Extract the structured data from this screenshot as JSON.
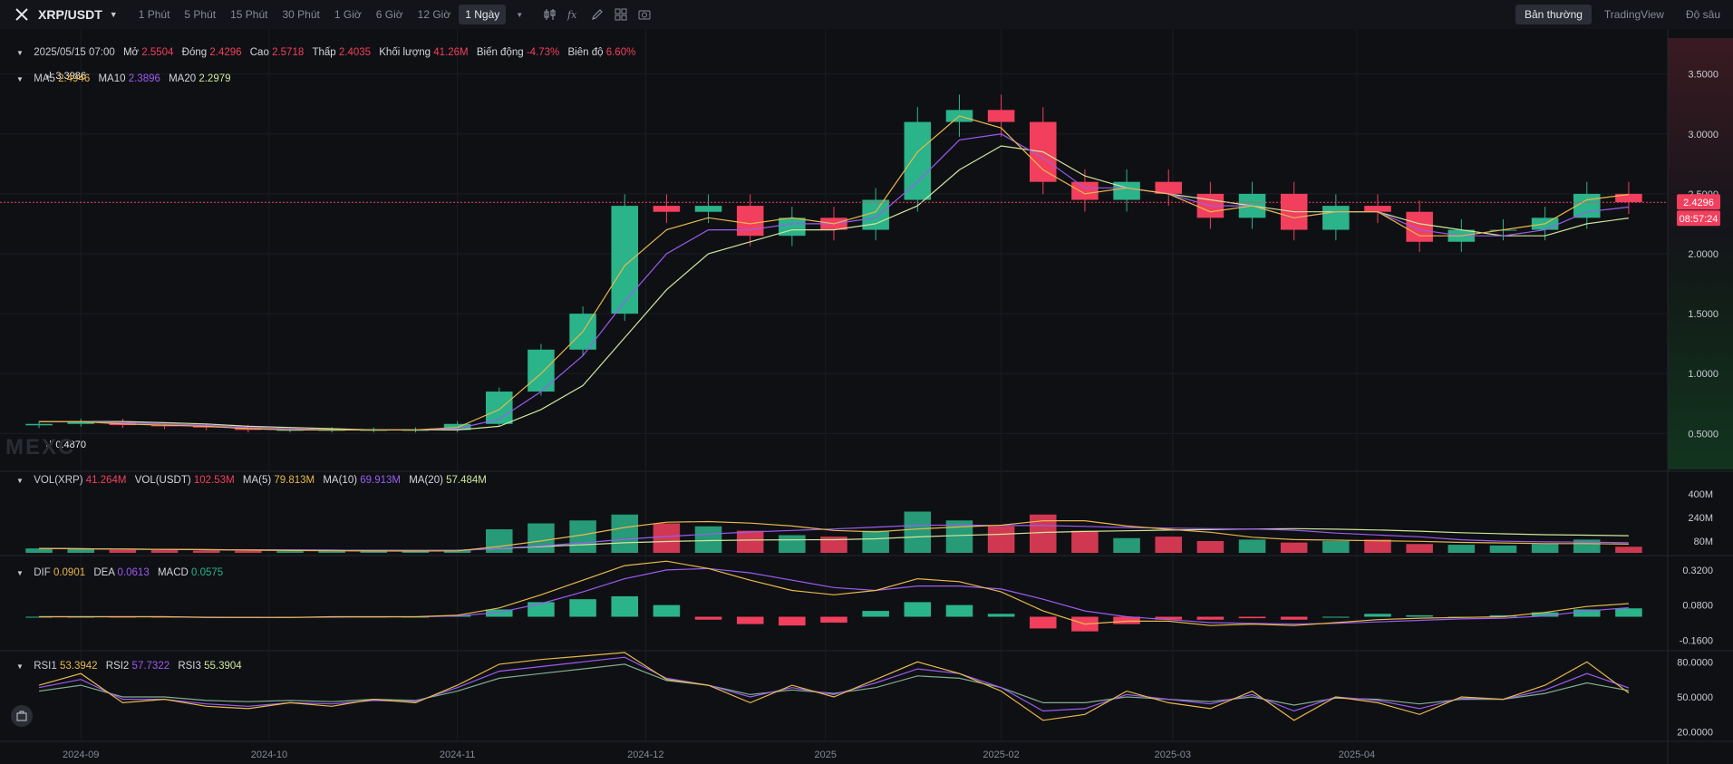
{
  "toolbar": {
    "pair": "XRP/USDT",
    "timeframes": [
      "1 Phút",
      "5 Phút",
      "15 Phút",
      "30 Phút",
      "1 Giờ",
      "6 Giờ",
      "12 Giờ",
      "1 Ngày"
    ],
    "active_timeframe": "1 Ngày",
    "right_buttons": [
      "Bản thường",
      "TradingView",
      "Độ sâu"
    ],
    "active_right": "Bản thường"
  },
  "ohlc_legend": {
    "date": "2025/05/15 07:00",
    "open_label": "Mở",
    "open": "2.5504",
    "close_label": "Đóng",
    "close": "2.4296",
    "high_label": "Cao",
    "high": "2.5718",
    "low_label": "Thấp",
    "low": "2.4035",
    "volume_label": "Khối lượng",
    "volume": "41.26M",
    "change_label": "Biến động",
    "change": "-4.73%",
    "amplitude_label": "Biên độ",
    "amplitude": "6.60%"
  },
  "ma_legend": {
    "ma5_label": "MA5",
    "ma5": "2.4946",
    "ma10_label": "MA10",
    "ma10": "2.3896",
    "ma20_label": "MA20",
    "ma20": "2.2979"
  },
  "vol_legend": {
    "vol_xrp_label": "VOL(XRP)",
    "vol_xrp": "41.264M",
    "vol_usdt_label": "VOL(USDT)",
    "vol_usdt": "102.53M",
    "ma5_label": "MA(5)",
    "ma5": "79.813M",
    "ma10_label": "MA(10)",
    "ma10": "69.913M",
    "ma20_label": "MA(20)",
    "ma20": "57.484M"
  },
  "macd_legend": {
    "dif_label": "DIF",
    "dif": "0.0901",
    "dea_label": "DEA",
    "dea": "0.0613",
    "macd_label": "MACD",
    "macd": "0.0575"
  },
  "rsi_legend": {
    "rsi1_label": "RSI1",
    "rsi1": "53.3942",
    "rsi2_label": "RSI2",
    "rsi2": "57.7322",
    "rsi3_label": "RSI3",
    "rsi3": "55.3904"
  },
  "watermark": "MEXC",
  "current_price_tag": "2.4296",
  "countdown": "08:57:24",
  "icons": {
    "logo": "xrp-logo-icon",
    "candles": "candlestick-icon",
    "indicators": "indicator-fx-icon",
    "draw": "pencil-icon",
    "layout": "grid-layout-icon",
    "snapshot": "camera-icon",
    "caret": "chevron-down-icon",
    "tools": "toolbox-icon"
  },
  "colors": {
    "up": "#2bb38a",
    "down": "#f23f5d",
    "ma5": "#e8b94a",
    "ma10": "#9a5cf2",
    "ma20": "#cfe69a",
    "background": "#0f1014"
  },
  "chart_data": [
    {
      "type": "candlestick",
      "panel": "price",
      "title": "",
      "x_ticks": [
        "2024-09",
        "2024-10",
        "2024-11",
        "2024-12",
        "2025",
        "2025-02",
        "2025-03",
        "2025-04"
      ],
      "y_ticks": [
        "3.5000",
        "3.0000",
        "2.5000",
        "2.0000",
        "1.5000",
        "1.0000",
        "0.5000"
      ],
      "ylim": [
        0.2,
        3.8
      ],
      "annotations": [
        {
          "label": "3.3986",
          "value": 3.3986,
          "date": "2024-12-03"
        },
        {
          "label": "0.4870",
          "value": 0.487,
          "date": "2024-09-26"
        }
      ],
      "last": {
        "open": 2.5504,
        "high": 2.5718,
        "low": 2.4035,
        "close": 2.4296
      },
      "dates": [
        "2024-08-24",
        "2024-08-31",
        "2024-09-07",
        "2024-09-14",
        "2024-09-21",
        "2024-09-28",
        "2024-10-05",
        "2024-10-12",
        "2024-10-19",
        "2024-10-26",
        "2024-11-02",
        "2024-11-09",
        "2024-11-16",
        "2024-11-23",
        "2024-11-30",
        "2024-12-07",
        "2024-12-14",
        "2024-12-21",
        "2024-12-28",
        "2025-01-04",
        "2025-01-11",
        "2025-01-18",
        "2025-01-25",
        "2025-02-01",
        "2025-02-08",
        "2025-02-15",
        "2025-02-22",
        "2025-03-01",
        "2025-03-08",
        "2025-03-15",
        "2025-03-22",
        "2025-03-29",
        "2025-04-05",
        "2025-04-12",
        "2025-04-19",
        "2025-04-26",
        "2025-05-03",
        "2025-05-10",
        "2025-05-15"
      ],
      "close": [
        0.58,
        0.6,
        0.57,
        0.56,
        0.55,
        0.53,
        0.53,
        0.53,
        0.53,
        0.53,
        0.58,
        0.85,
        1.2,
        1.5,
        2.4,
        2.35,
        2.4,
        2.15,
        2.3,
        2.2,
        2.45,
        3.1,
        3.2,
        3.1,
        2.6,
        2.45,
        2.6,
        2.5,
        2.3,
        2.5,
        2.2,
        2.4,
        2.35,
        2.1,
        2.2,
        2.2,
        2.3,
        2.5,
        2.4296
      ],
      "ma5_series": [
        0.6,
        0.6,
        0.58,
        0.57,
        0.56,
        0.54,
        0.53,
        0.53,
        0.53,
        0.53,
        0.55,
        0.7,
        1.0,
        1.35,
        1.9,
        2.2,
        2.3,
        2.25,
        2.3,
        2.25,
        2.35,
        2.85,
        3.15,
        3.05,
        2.7,
        2.5,
        2.55,
        2.5,
        2.35,
        2.4,
        2.3,
        2.35,
        2.35,
        2.15,
        2.15,
        2.2,
        2.25,
        2.45,
        2.4946
      ],
      "ma10_series": [
        0.6,
        0.6,
        0.59,
        0.58,
        0.57,
        0.55,
        0.54,
        0.53,
        0.53,
        0.53,
        0.54,
        0.62,
        0.85,
        1.15,
        1.6,
        2.0,
        2.2,
        2.2,
        2.25,
        2.25,
        2.3,
        2.6,
        2.95,
        3.0,
        2.8,
        2.55,
        2.55,
        2.5,
        2.4,
        2.4,
        2.3,
        2.35,
        2.35,
        2.2,
        2.15,
        2.15,
        2.2,
        2.35,
        2.3896
      ],
      "ma20_series": [
        0.6,
        0.6,
        0.6,
        0.59,
        0.58,
        0.56,
        0.55,
        0.54,
        0.53,
        0.53,
        0.53,
        0.56,
        0.7,
        0.9,
        1.3,
        1.7,
        2.0,
        2.1,
        2.2,
        2.2,
        2.25,
        2.4,
        2.7,
        2.9,
        2.85,
        2.65,
        2.55,
        2.5,
        2.45,
        2.4,
        2.35,
        2.35,
        2.35,
        2.25,
        2.2,
        2.15,
        2.15,
        2.25,
        2.2979
      ]
    },
    {
      "type": "bar",
      "panel": "volume",
      "y_ticks": [
        "400M",
        "240M",
        "80M"
      ],
      "ylim": [
        0,
        480
      ],
      "unit": "M",
      "dates_ref": "same as price panel",
      "values": [
        30,
        25,
        20,
        18,
        15,
        14,
        12,
        12,
        11,
        12,
        20,
        160,
        200,
        220,
        260,
        200,
        180,
        150,
        120,
        110,
        150,
        280,
        220,
        180,
        260,
        150,
        100,
        110,
        80,
        90,
        70,
        80,
        90,
        60,
        55,
        50,
        60,
        90,
        41.26
      ],
      "last_value": 41.26
    },
    {
      "type": "bar",
      "panel": "macd",
      "y_ticks": [
        "0.3200",
        "0.0800",
        "-0.1600"
      ],
      "ylim": [
        -0.22,
        0.4
      ],
      "dates_ref": "same as price panel",
      "macd": [
        0.0,
        0.0,
        -0.005,
        -0.005,
        -0.005,
        -0.005,
        0.0,
        0.0,
        0.0,
        0.0,
        0.01,
        0.05,
        0.1,
        0.12,
        0.14,
        0.08,
        -0.02,
        -0.05,
        -0.06,
        -0.04,
        0.04,
        0.1,
        0.08,
        0.02,
        -0.08,
        -0.1,
        -0.05,
        -0.02,
        -0.02,
        -0.01,
        -0.02,
        0.0,
        0.02,
        0.01,
        0.0,
        0.01,
        0.03,
        0.05,
        0.0575
      ],
      "dif": [
        0.0,
        0.0,
        0.0,
        0.0,
        -0.005,
        -0.005,
        -0.005,
        0.0,
        0.0,
        0.0,
        0.01,
        0.06,
        0.15,
        0.25,
        0.35,
        0.38,
        0.33,
        0.25,
        0.18,
        0.15,
        0.18,
        0.26,
        0.24,
        0.17,
        0.04,
        -0.05,
        -0.03,
        -0.03,
        -0.06,
        -0.05,
        -0.06,
        -0.04,
        -0.02,
        -0.01,
        -0.005,
        0.0,
        0.03,
        0.07,
        0.0901
      ],
      "dea": [
        0.0,
        0.0,
        0.0,
        0.0,
        -0.003,
        -0.004,
        -0.004,
        -0.003,
        -0.002,
        -0.001,
        0.005,
        0.03,
        0.09,
        0.17,
        0.26,
        0.32,
        0.33,
        0.3,
        0.25,
        0.2,
        0.18,
        0.21,
        0.21,
        0.19,
        0.12,
        0.04,
        0.0,
        -0.02,
        -0.04,
        -0.045,
        -0.05,
        -0.045,
        -0.035,
        -0.025,
        -0.015,
        -0.01,
        0.005,
        0.04,
        0.0613
      ]
    },
    {
      "type": "line",
      "panel": "rsi",
      "y_ticks": [
        "80.0000",
        "50.0000",
        "20.0000"
      ],
      "ylim": [
        12,
        88
      ],
      "dates_ref": "same as price panel",
      "rsi1": [
        60,
        70,
        45,
        48,
        42,
        40,
        45,
        42,
        48,
        45,
        60,
        78,
        82,
        85,
        88,
        65,
        60,
        45,
        60,
        50,
        65,
        80,
        70,
        55,
        30,
        35,
        55,
        45,
        40,
        55,
        30,
        50,
        45,
        35,
        50,
        48,
        60,
        80,
        53.39
      ],
      "rsi2": [
        58,
        65,
        48,
        48,
        44,
        42,
        45,
        44,
        47,
        46,
        58,
        72,
        76,
        80,
        84,
        66,
        60,
        50,
        58,
        52,
        62,
        74,
        70,
        58,
        38,
        40,
        52,
        48,
        44,
        52,
        38,
        50,
        47,
        40,
        49,
        48,
        56,
        70,
        57.73
      ],
      "rsi3": [
        55,
        60,
        50,
        50,
        47,
        46,
        47,
        46,
        48,
        47,
        55,
        66,
        70,
        74,
        78,
        64,
        60,
        52,
        56,
        53,
        58,
        68,
        66,
        58,
        45,
        45,
        50,
        48,
        46,
        50,
        43,
        49,
        48,
        44,
        48,
        48,
        53,
        62,
        55.39
      ]
    }
  ]
}
